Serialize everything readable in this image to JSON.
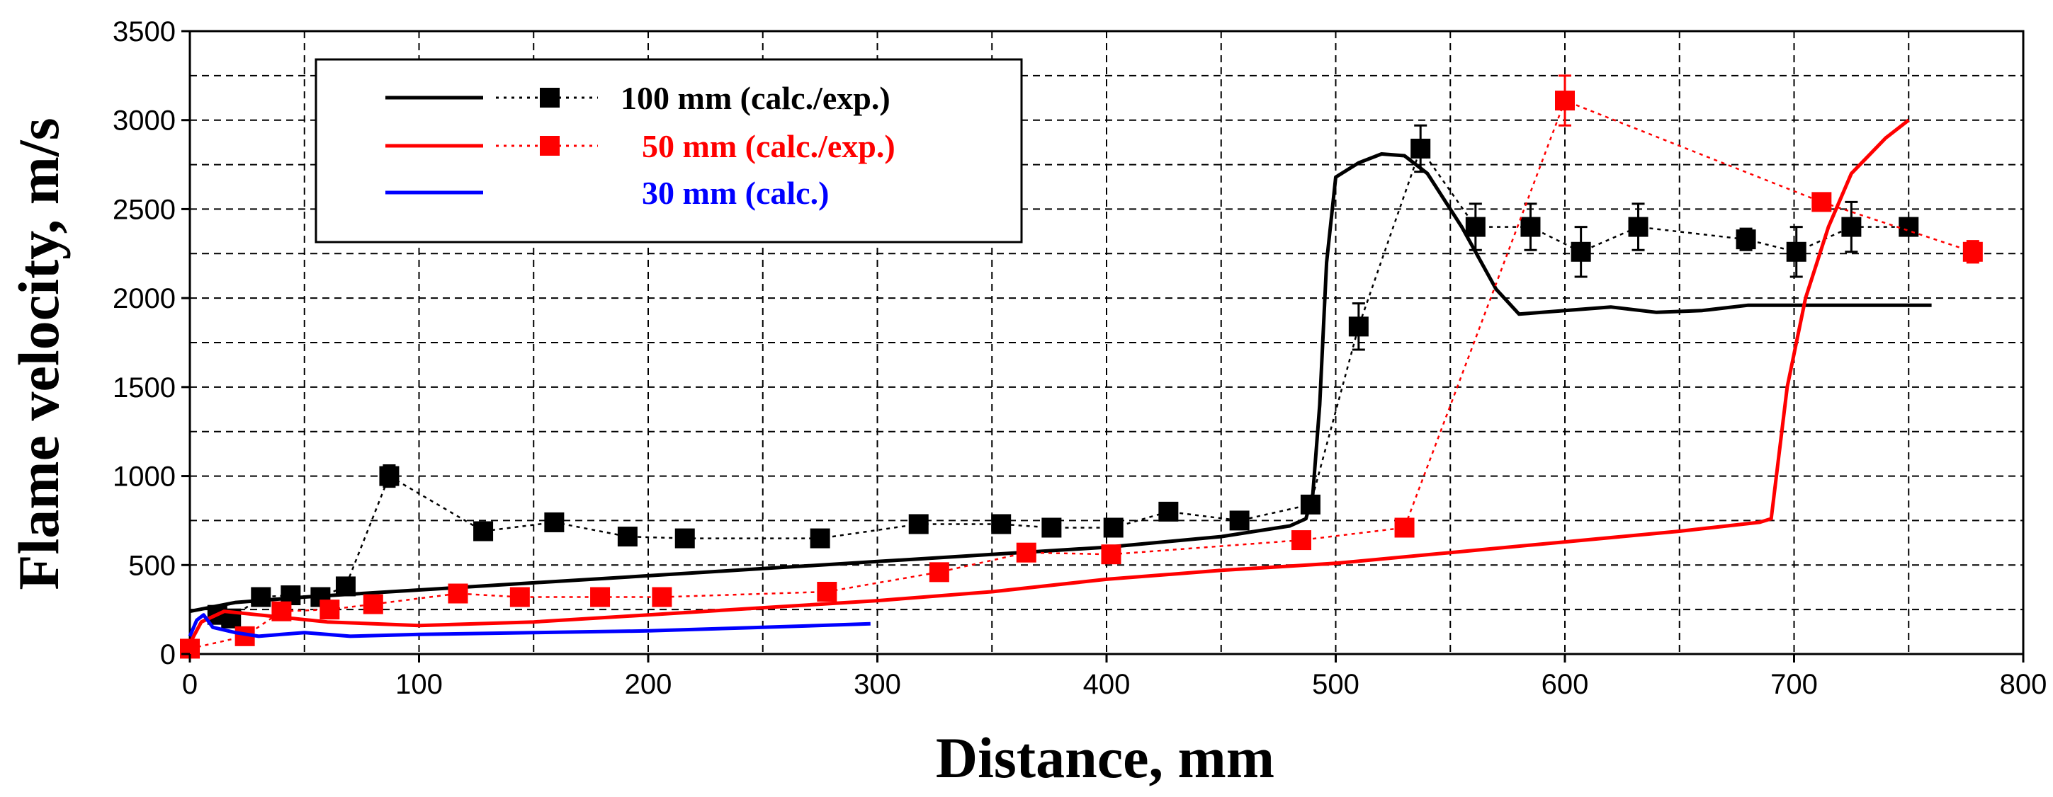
{
  "chart_data": {
    "type": "line",
    "title": "",
    "xlabel": "Distance, mm",
    "ylabel": "Flame velocity, m/s",
    "xlim": [
      0,
      800
    ],
    "ylim": [
      0,
      3500
    ],
    "x_ticks": [
      0,
      100,
      200,
      300,
      400,
      500,
      600,
      700,
      800
    ],
    "y_ticks": [
      0,
      500,
      1000,
      1500,
      2000,
      2500,
      3000,
      3500
    ],
    "grid": "dashed",
    "legend_position": "top-left",
    "colors": {
      "black": "#000000",
      "red": "#ff0000",
      "blue": "#0000ff"
    },
    "legend": [
      {
        "label": "100 mm (calc./exp.)",
        "color": "#000000",
        "marker": "square",
        "calc": true,
        "exp": true
      },
      {
        "label": "50 mm (calc./exp.)",
        "color": "#ff0000",
        "marker": "square",
        "calc": true,
        "exp": true
      },
      {
        "label": "30 mm (calc.)",
        "color": "#0000ff",
        "marker": "none",
        "calc": true,
        "exp": false
      }
    ],
    "series": [
      {
        "name": "100 mm (calc.)",
        "kind": "calc",
        "color": "#000000",
        "x": [
          0,
          20,
          50,
          100,
          150,
          200,
          250,
          300,
          350,
          400,
          450,
          480,
          487,
          490,
          493,
          496,
          500,
          510,
          520,
          530,
          540,
          555,
          570,
          580,
          600,
          620,
          640,
          660,
          680,
          700,
          720,
          740,
          760
        ],
        "y": [
          240,
          290,
          320,
          360,
          400,
          440,
          480,
          520,
          560,
          600,
          660,
          720,
          760,
          900,
          1400,
          2200,
          2680,
          2760,
          2810,
          2800,
          2700,
          2400,
          2050,
          1910,
          1930,
          1950,
          1920,
          1930,
          1960,
          1960,
          1960,
          1960,
          1960
        ]
      },
      {
        "name": "100 mm (exp.)",
        "kind": "exp",
        "color": "#000000",
        "x": [
          12,
          18,
          31,
          44,
          57,
          68,
          87,
          128,
          159,
          191,
          216,
          275,
          318,
          354,
          376,
          403,
          427,
          458,
          489,
          510,
          537,
          561,
          585,
          607,
          632,
          679,
          701,
          725,
          750
        ],
        "y": [
          220,
          200,
          320,
          330,
          320,
          380,
          1000,
          690,
          740,
          660,
          650,
          650,
          730,
          730,
          710,
          710,
          800,
          750,
          840,
          1840,
          2840,
          2400,
          2400,
          2260,
          2400,
          2330,
          2260,
          2400,
          2400
        ],
        "err": [
          0,
          0,
          0,
          0,
          0,
          0,
          60,
          0,
          0,
          0,
          0,
          0,
          0,
          0,
          0,
          0,
          0,
          0,
          0,
          130,
          130,
          130,
          130,
          140,
          130,
          60,
          140,
          140,
          0
        ]
      },
      {
        "name": "50 mm (calc.)",
        "kind": "calc",
        "color": "#ff0000",
        "x": [
          0,
          5,
          15,
          30,
          60,
          100,
          150,
          200,
          250,
          300,
          350,
          400,
          450,
          500,
          550,
          600,
          650,
          685,
          690,
          697,
          705,
          715,
          725,
          740,
          750
        ],
        "y": [
          60,
          180,
          240,
          220,
          180,
          160,
          180,
          220,
          260,
          300,
          350,
          420,
          470,
          510,
          570,
          630,
          690,
          740,
          760,
          1500,
          2000,
          2400,
          2700,
          2900,
          3000
        ]
      },
      {
        "name": "50 mm (exp.)",
        "kind": "exp",
        "color": "#ff0000",
        "x": [
          0,
          24,
          40,
          61,
          80,
          117,
          144,
          179,
          206,
          278,
          327,
          365,
          402,
          485,
          530,
          600,
          712,
          778
        ],
        "y": [
          30,
          100,
          240,
          250,
          280,
          340,
          320,
          320,
          320,
          350,
          460,
          570,
          560,
          640,
          710,
          3110,
          2540,
          2260
        ],
        "err": [
          0,
          0,
          0,
          0,
          0,
          0,
          0,
          0,
          0,
          0,
          0,
          0,
          0,
          0,
          0,
          140,
          0,
          60
        ]
      },
      {
        "name": "30 mm (calc.)",
        "kind": "calc",
        "color": "#0000ff",
        "x": [
          0,
          3,
          6,
          10,
          20,
          30,
          40,
          50,
          70,
          100,
          150,
          200,
          250,
          297
        ],
        "y": [
          100,
          190,
          220,
          150,
          120,
          100,
          110,
          120,
          100,
          110,
          120,
          130,
          150,
          170
        ]
      }
    ]
  }
}
